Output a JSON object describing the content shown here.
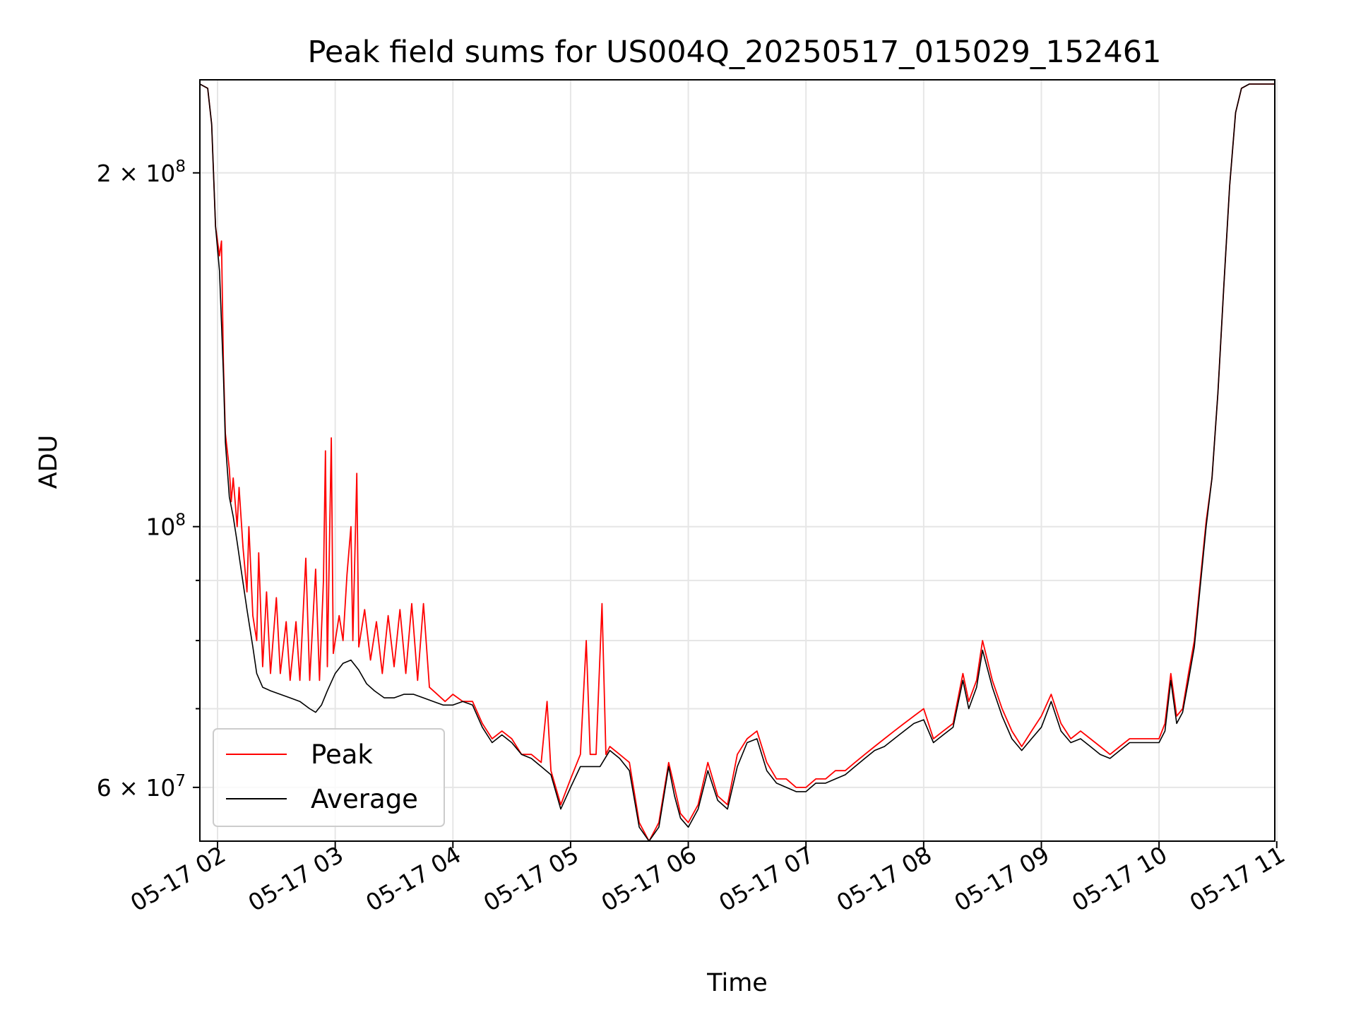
{
  "chart_data": {
    "type": "line",
    "title": "Peak field sums for US004Q_20250517_015029_152461",
    "xlabel": "Time",
    "ylabel": "ADU",
    "x_axis": "time (2025-05-17 hh:mm)",
    "y_scale": "log",
    "xlim": [
      "01:51",
      "10:59"
    ],
    "ylim": [
      54000000,
      240000000
    ],
    "grid": true,
    "legend_position": "lower-left",
    "x_ticks": [
      "05-17 02",
      "05-17 03",
      "05-17 04",
      "05-17 05",
      "05-17 06",
      "05-17 07",
      "05-17 08",
      "05-17 09",
      "05-17 10",
      "05-17 11"
    ],
    "y_major_ticks": [
      {
        "value": 60000000,
        "mantissa": "6",
        "exponent": "7"
      },
      {
        "value": 100000000,
        "mantissa": "",
        "exponent": "8"
      },
      {
        "value": 200000000,
        "mantissa": "2",
        "exponent": "8"
      }
    ],
    "y_minor_ticks": [
      70000000,
      80000000,
      90000000
    ],
    "series": [
      {
        "name": "Peak",
        "color": "#ff0000",
        "points": [
          [
            "01:51",
            238000000
          ],
          [
            "01:55",
            236000000
          ],
          [
            "01:57",
            220000000
          ],
          [
            "01:59",
            180000000
          ],
          [
            "02:01",
            170000000
          ],
          [
            "02:02",
            175000000
          ],
          [
            "02:03",
            138000000
          ],
          [
            "02:04",
            120000000
          ],
          [
            "02:06",
            112000000
          ],
          [
            "02:07",
            105000000
          ],
          [
            "02:08",
            110000000
          ],
          [
            "02:10",
            100000000
          ],
          [
            "02:11",
            108000000
          ],
          [
            "02:13",
            96000000
          ],
          [
            "02:15",
            88000000
          ],
          [
            "02:16",
            100000000
          ],
          [
            "02:18",
            84000000
          ],
          [
            "02:20",
            80000000
          ],
          [
            "02:21",
            95000000
          ],
          [
            "02:23",
            76000000
          ],
          [
            "02:25",
            88000000
          ],
          [
            "02:27",
            75000000
          ],
          [
            "02:30",
            87000000
          ],
          [
            "02:32",
            75000000
          ],
          [
            "02:35",
            83000000
          ],
          [
            "02:37",
            74000000
          ],
          [
            "02:40",
            83000000
          ],
          [
            "02:42",
            74000000
          ],
          [
            "02:45",
            94000000
          ],
          [
            "02:47",
            74000000
          ],
          [
            "02:50",
            92000000
          ],
          [
            "02:52",
            74000000
          ],
          [
            "02:54",
            90000000
          ],
          [
            "02:55",
            116000000
          ],
          [
            "02:56",
            76000000
          ],
          [
            "02:58",
            119000000
          ],
          [
            "02:59",
            78000000
          ],
          [
            "03:02",
            84000000
          ],
          [
            "03:04",
            80000000
          ],
          [
            "03:06",
            91000000
          ],
          [
            "03:08",
            100000000
          ],
          [
            "03:09",
            80000000
          ],
          [
            "03:11",
            111000000
          ],
          [
            "03:12",
            79000000
          ],
          [
            "03:15",
            85000000
          ],
          [
            "03:18",
            77000000
          ],
          [
            "03:21",
            83000000
          ],
          [
            "03:24",
            75000000
          ],
          [
            "03:27",
            84000000
          ],
          [
            "03:30",
            76000000
          ],
          [
            "03:33",
            85000000
          ],
          [
            "03:36",
            75000000
          ],
          [
            "03:39",
            86000000
          ],
          [
            "03:42",
            74000000
          ],
          [
            "03:45",
            86000000
          ],
          [
            "03:48",
            73000000
          ],
          [
            "03:52",
            72000000
          ],
          [
            "03:56",
            71000000
          ],
          [
            "04:00",
            72000000
          ],
          [
            "04:05",
            71000000
          ],
          [
            "04:10",
            71000000
          ],
          [
            "04:15",
            68000000
          ],
          [
            "04:20",
            66000000
          ],
          [
            "04:25",
            67000000
          ],
          [
            "04:30",
            66000000
          ],
          [
            "04:35",
            64000000
          ],
          [
            "04:40",
            64000000
          ],
          [
            "04:45",
            63000000
          ],
          [
            "04:48",
            71000000
          ],
          [
            "04:50",
            62000000
          ],
          [
            "04:55",
            58000000
          ],
          [
            "05:00",
            61000000
          ],
          [
            "05:05",
            64000000
          ],
          [
            "05:08",
            80000000
          ],
          [
            "05:10",
            64000000
          ],
          [
            "05:13",
            64000000
          ],
          [
            "05:16",
            86000000
          ],
          [
            "05:18",
            64000000
          ],
          [
            "05:20",
            65000000
          ],
          [
            "05:25",
            64000000
          ],
          [
            "05:30",
            63000000
          ],
          [
            "05:35",
            56000000
          ],
          [
            "05:40",
            54000000
          ],
          [
            "05:45",
            56000000
          ],
          [
            "05:50",
            63000000
          ],
          [
            "05:53",
            60000000
          ],
          [
            "05:56",
            57000000
          ],
          [
            "06:00",
            56000000
          ],
          [
            "06:05",
            58000000
          ],
          [
            "06:10",
            63000000
          ],
          [
            "06:15",
            59000000
          ],
          [
            "06:20",
            58000000
          ],
          [
            "06:25",
            64000000
          ],
          [
            "06:30",
            66000000
          ],
          [
            "06:35",
            67000000
          ],
          [
            "06:40",
            63000000
          ],
          [
            "06:45",
            61000000
          ],
          [
            "06:50",
            61000000
          ],
          [
            "06:55",
            60000000
          ],
          [
            "07:00",
            60000000
          ],
          [
            "07:05",
            61000000
          ],
          [
            "07:10",
            61000000
          ],
          [
            "07:15",
            62000000
          ],
          [
            "07:20",
            62000000
          ],
          [
            "07:25",
            63000000
          ],
          [
            "07:30",
            64000000
          ],
          [
            "07:35",
            65000000
          ],
          [
            "07:40",
            66000000
          ],
          [
            "07:45",
            67000000
          ],
          [
            "07:50",
            68000000
          ],
          [
            "07:55",
            69000000
          ],
          [
            "08:00",
            70000000
          ],
          [
            "08:05",
            66000000
          ],
          [
            "08:10",
            67000000
          ],
          [
            "08:15",
            68000000
          ],
          [
            "08:20",
            75000000
          ],
          [
            "08:23",
            71000000
          ],
          [
            "08:27",
            74000000
          ],
          [
            "08:30",
            80000000
          ],
          [
            "08:35",
            74000000
          ],
          [
            "08:40",
            70000000
          ],
          [
            "08:45",
            67000000
          ],
          [
            "08:50",
            65000000
          ],
          [
            "08:55",
            67000000
          ],
          [
            "09:00",
            69000000
          ],
          [
            "09:05",
            72000000
          ],
          [
            "09:10",
            68000000
          ],
          [
            "09:15",
            66000000
          ],
          [
            "09:20",
            67000000
          ],
          [
            "09:25",
            66000000
          ],
          [
            "09:30",
            65000000
          ],
          [
            "09:35",
            64000000
          ],
          [
            "09:40",
            65000000
          ],
          [
            "09:45",
            66000000
          ],
          [
            "09:50",
            66000000
          ],
          [
            "09:55",
            66000000
          ],
          [
            "10:00",
            66000000
          ],
          [
            "10:03",
            68000000
          ],
          [
            "10:06",
            75000000
          ],
          [
            "10:09",
            69000000
          ],
          [
            "10:12",
            70000000
          ],
          [
            "10:15",
            75000000
          ],
          [
            "10:18",
            80000000
          ],
          [
            "10:21",
            90000000
          ],
          [
            "10:24",
            101000000
          ],
          [
            "10:27",
            110000000
          ],
          [
            "10:30",
            130000000
          ],
          [
            "10:33",
            160000000
          ],
          [
            "10:36",
            195000000
          ],
          [
            "10:39",
            225000000
          ],
          [
            "10:42",
            236000000
          ],
          [
            "10:46",
            238000000
          ],
          [
            "10:59",
            238000000
          ]
        ]
      },
      {
        "name": "Average",
        "color": "#000000",
        "points": [
          [
            "01:51",
            238000000
          ],
          [
            "01:55",
            236000000
          ],
          [
            "01:57",
            220000000
          ],
          [
            "01:59",
            180000000
          ],
          [
            "02:01",
            165000000
          ],
          [
            "02:03",
            135000000
          ],
          [
            "02:04",
            118000000
          ],
          [
            "02:06",
            106000000
          ],
          [
            "02:08",
            102000000
          ],
          [
            "02:10",
            97000000
          ],
          [
            "02:12",
            92000000
          ],
          [
            "02:15",
            85000000
          ],
          [
            "02:18",
            79000000
          ],
          [
            "02:20",
            75000000
          ],
          [
            "02:23",
            73000000
          ],
          [
            "02:27",
            72500000
          ],
          [
            "02:32",
            72000000
          ],
          [
            "02:37",
            71500000
          ],
          [
            "02:42",
            71000000
          ],
          [
            "02:47",
            70000000
          ],
          [
            "02:50",
            69500000
          ],
          [
            "02:53",
            70500000
          ],
          [
            "02:56",
            72500000
          ],
          [
            "03:00",
            75000000
          ],
          [
            "03:04",
            76500000
          ],
          [
            "03:08",
            77000000
          ],
          [
            "03:12",
            75500000
          ],
          [
            "03:16",
            73500000
          ],
          [
            "03:20",
            72500000
          ],
          [
            "03:25",
            71500000
          ],
          [
            "03:30",
            71500000
          ],
          [
            "03:35",
            72000000
          ],
          [
            "03:40",
            72000000
          ],
          [
            "03:45",
            71500000
          ],
          [
            "03:50",
            71000000
          ],
          [
            "03:55",
            70500000
          ],
          [
            "04:00",
            70500000
          ],
          [
            "04:05",
            71000000
          ],
          [
            "04:10",
            70500000
          ],
          [
            "04:15",
            67500000
          ],
          [
            "04:20",
            65500000
          ],
          [
            "04:25",
            66500000
          ],
          [
            "04:30",
            65500000
          ],
          [
            "04:35",
            64000000
          ],
          [
            "04:40",
            63500000
          ],
          [
            "04:45",
            62500000
          ],
          [
            "04:50",
            61500000
          ],
          [
            "04:55",
            57500000
          ],
          [
            "05:00",
            60000000
          ],
          [
            "05:05",
            62500000
          ],
          [
            "05:10",
            62500000
          ],
          [
            "05:15",
            62500000
          ],
          [
            "05:20",
            64500000
          ],
          [
            "05:25",
            63500000
          ],
          [
            "05:30",
            62000000
          ],
          [
            "05:35",
            55500000
          ],
          [
            "05:40",
            54000000
          ],
          [
            "05:45",
            55500000
          ],
          [
            "05:50",
            62500000
          ],
          [
            "05:53",
            59000000
          ],
          [
            "05:56",
            56500000
          ],
          [
            "06:00",
            55500000
          ],
          [
            "06:05",
            57500000
          ],
          [
            "06:10",
            62000000
          ],
          [
            "06:15",
            58500000
          ],
          [
            "06:20",
            57500000
          ],
          [
            "06:25",
            62500000
          ],
          [
            "06:30",
            65500000
          ],
          [
            "06:35",
            66000000
          ],
          [
            "06:40",
            62000000
          ],
          [
            "06:45",
            60500000
          ],
          [
            "06:50",
            60000000
          ],
          [
            "06:55",
            59500000
          ],
          [
            "07:00",
            59500000
          ],
          [
            "07:05",
            60500000
          ],
          [
            "07:10",
            60500000
          ],
          [
            "07:15",
            61000000
          ],
          [
            "07:20",
            61500000
          ],
          [
            "07:25",
            62500000
          ],
          [
            "07:30",
            63500000
          ],
          [
            "07:35",
            64500000
          ],
          [
            "07:40",
            65000000
          ],
          [
            "07:45",
            66000000
          ],
          [
            "07:50",
            67000000
          ],
          [
            "07:55",
            68000000
          ],
          [
            "08:00",
            68500000
          ],
          [
            "08:05",
            65500000
          ],
          [
            "08:10",
            66500000
          ],
          [
            "08:15",
            67500000
          ],
          [
            "08:20",
            74000000
          ],
          [
            "08:23",
            70000000
          ],
          [
            "08:27",
            73000000
          ],
          [
            "08:30",
            78500000
          ],
          [
            "08:35",
            73000000
          ],
          [
            "08:40",
            69000000
          ],
          [
            "08:45",
            66000000
          ],
          [
            "08:50",
            64500000
          ],
          [
            "08:55",
            66000000
          ],
          [
            "09:00",
            67500000
          ],
          [
            "09:05",
            71000000
          ],
          [
            "09:10",
            67000000
          ],
          [
            "09:15",
            65500000
          ],
          [
            "09:20",
            66000000
          ],
          [
            "09:25",
            65000000
          ],
          [
            "09:30",
            64000000
          ],
          [
            "09:35",
            63500000
          ],
          [
            "09:40",
            64500000
          ],
          [
            "09:45",
            65500000
          ],
          [
            "09:50",
            65500000
          ],
          [
            "09:55",
            65500000
          ],
          [
            "10:00",
            65500000
          ],
          [
            "10:03",
            67000000
          ],
          [
            "10:06",
            74000000
          ],
          [
            "10:09",
            68000000
          ],
          [
            "10:12",
            69500000
          ],
          [
            "10:15",
            74000000
          ],
          [
            "10:18",
            79000000
          ],
          [
            "10:21",
            89000000
          ],
          [
            "10:24",
            100000000
          ],
          [
            "10:27",
            110000000
          ],
          [
            "10:30",
            130000000
          ],
          [
            "10:33",
            160000000
          ],
          [
            "10:36",
            195000000
          ],
          [
            "10:39",
            225000000
          ],
          [
            "10:42",
            236000000
          ],
          [
            "10:46",
            238000000
          ],
          [
            "10:59",
            238000000
          ]
        ]
      }
    ]
  }
}
